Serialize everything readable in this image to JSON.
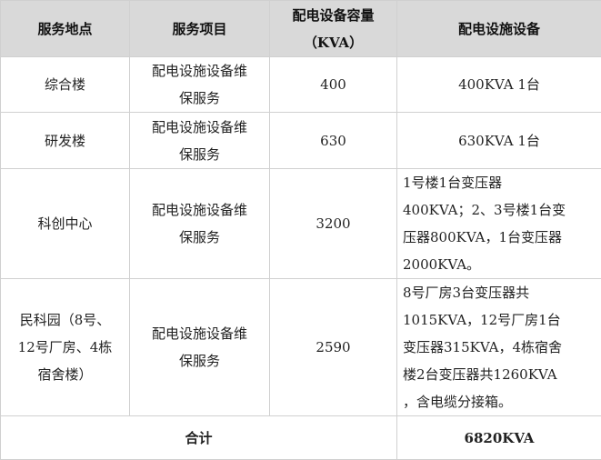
{
  "headers": [
    "服务地点",
    "服务项目",
    "配电设备容量\n（KVA）",
    "配电设施设备"
  ],
  "rows": [
    {
      "location": "综合楼",
      "service": "配电设施设备维\n保服务",
      "capacity": "400",
      "equipment": "400KVA 1台"
    },
    {
      "location": "研发楼",
      "service": "配电设施设备维\n保服务",
      "capacity": "630",
      "equipment": "630KVA 1台"
    },
    {
      "location": "科创中心",
      "service": "配电设施设备维\n保服务",
      "capacity": "3200",
      "equipment": "1号楼1台变压器\n400KVA；2、3号楼1台变\n压器800KVA，1台变压器\n2000KVA。"
    },
    {
      "location": "民科园（8号、\n12号厂房、4栋\n宿舍楼）",
      "service": "配电设施设备维\n保服务",
      "capacity": "2590",
      "equipment": "8号厂房3台变压器共\n1015KVA，12号厂房1台\n变压器315KVA，4栋宿舍\n楼2台变压器共1260KVA\n，含电缆分接箱。"
    }
  ],
  "total": {
    "label": "合计",
    "value": "6820KVA"
  }
}
